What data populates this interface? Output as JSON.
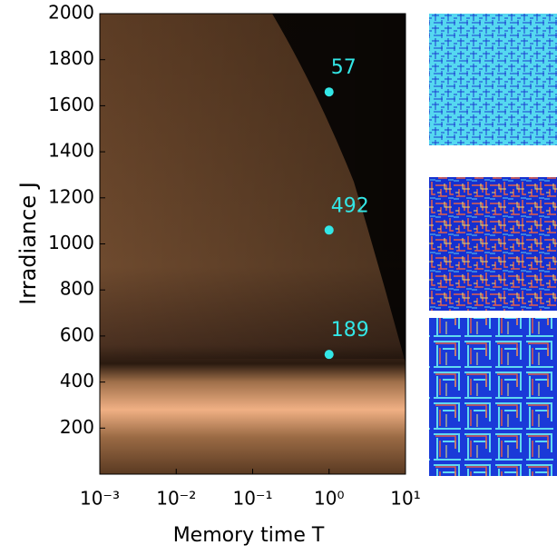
{
  "chart_data": {
    "type": "scatter",
    "xlabel": "Memory time T",
    "ylabel": "Irradiance J",
    "xscale": "log",
    "xlim": [
      0.001,
      10
    ],
    "ylim": [
      0,
      2000
    ],
    "xticks": [
      {
        "value": 0.001,
        "label": "10⁻³"
      },
      {
        "value": 0.01,
        "label": "10⁻²"
      },
      {
        "value": 0.1,
        "label": "10⁻¹"
      },
      {
        "value": 1,
        "label": "10⁰"
      },
      {
        "value": 10,
        "label": "10¹"
      }
    ],
    "yticks": [
      200,
      400,
      600,
      800,
      1000,
      1200,
      1400,
      1600,
      1800,
      2000
    ],
    "series": [
      {
        "color": "#33e6e6",
        "x": [
          1,
          1,
          1
        ],
        "values": [
          1660,
          1060,
          520
        ],
        "annotations": [
          "57",
          "492",
          "189"
        ]
      }
    ]
  }
}
